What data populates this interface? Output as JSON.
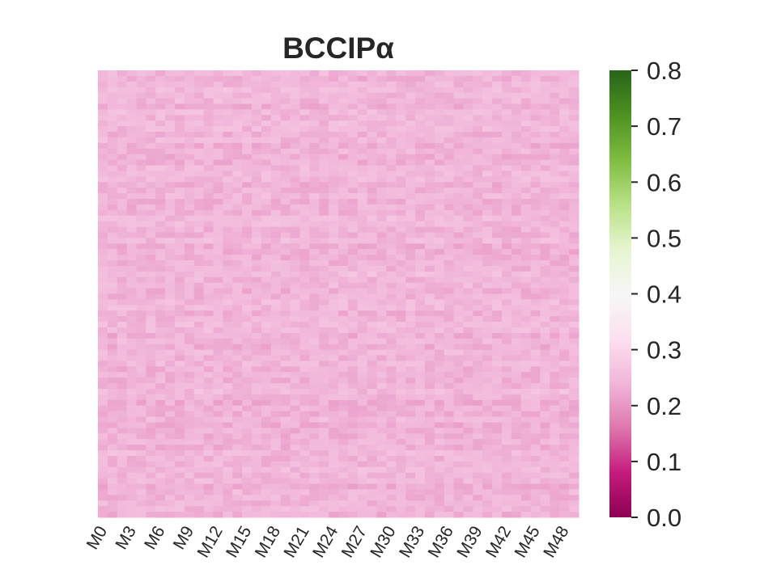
{
  "chart_data": {
    "type": "heatmap",
    "title": "BCCIPα",
    "xlabel": "",
    "ylabel": "",
    "n_columns": 50,
    "n_rows": 80,
    "x_tick_labels": [
      "M0",
      "M3",
      "M6",
      "M9",
      "M12",
      "M15",
      "M18",
      "M21",
      "M24",
      "M27",
      "M30",
      "M33",
      "M36",
      "M39",
      "M42",
      "M45",
      "M48"
    ],
    "y_tick_labels": [],
    "value_range": [
      0.0,
      0.8
    ],
    "typical_value": 0.24,
    "value_spread": 0.02,
    "grid": false,
    "colorbar": {
      "colormap": "PiYG",
      "position": "right",
      "ticks": [
        0.0,
        0.1,
        0.2,
        0.3,
        0.4,
        0.5,
        0.6,
        0.7,
        0.8
      ],
      "tick_labels": [
        "0.0",
        "0.1",
        "0.2",
        "0.3",
        "0.4",
        "0.5",
        "0.6",
        "0.7",
        "0.8"
      ],
      "stops": [
        "#8e0152",
        "#c51b7d",
        "#de77ae",
        "#f1b6da",
        "#fde0ef",
        "#f7f7f7",
        "#e6f5d0",
        "#b8e186",
        "#7fbc41",
        "#4d9221",
        "#276419"
      ]
    }
  }
}
